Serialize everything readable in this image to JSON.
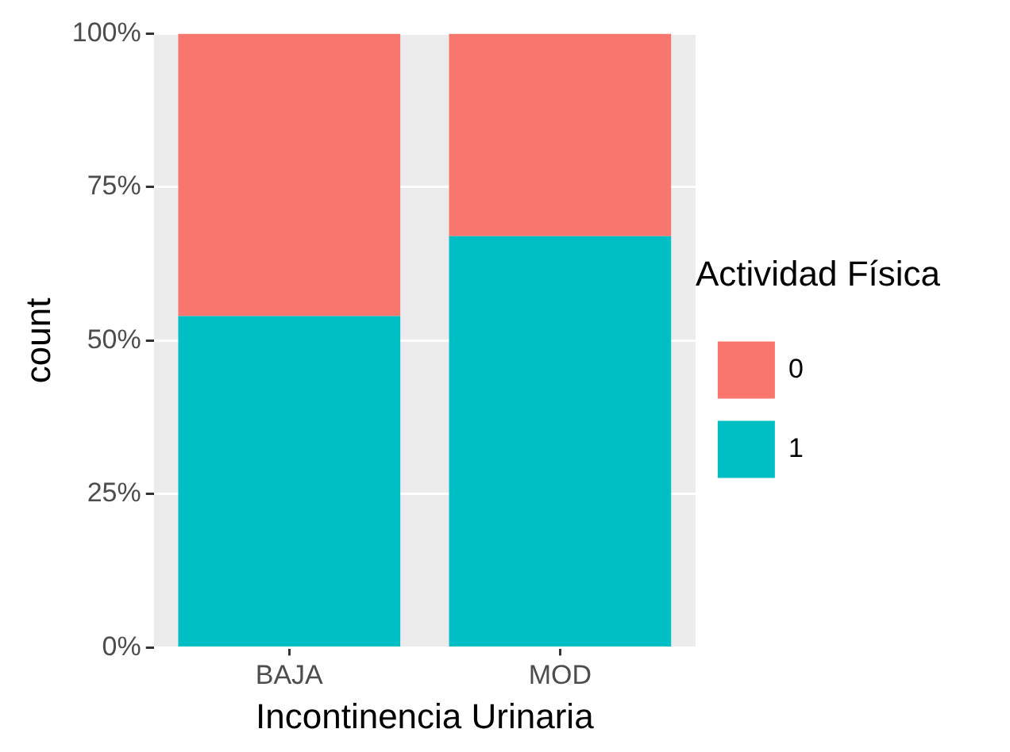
{
  "chart_data": {
    "type": "bar",
    "stacked": true,
    "xlabel": "Incontinencia Urinaria",
    "ylabel": "count",
    "legend_title": "Actividad Física",
    "categories": [
      "BAJA",
      "MOD"
    ],
    "series": [
      {
        "name": "1",
        "color": "#00bfc4",
        "values": [
          54,
          67
        ]
      },
      {
        "name": "0",
        "color": "#f8766d",
        "values": [
          46,
          33
        ]
      }
    ],
    "ylim": [
      0,
      100
    ],
    "yticks": [
      {
        "value": 0,
        "label": "0%"
      },
      {
        "value": 25,
        "label": "25%"
      },
      {
        "value": 50,
        "label": "50%"
      },
      {
        "value": 75,
        "label": "75%"
      },
      {
        "value": 100,
        "label": "100%"
      }
    ],
    "grid": true,
    "legend": "right"
  }
}
